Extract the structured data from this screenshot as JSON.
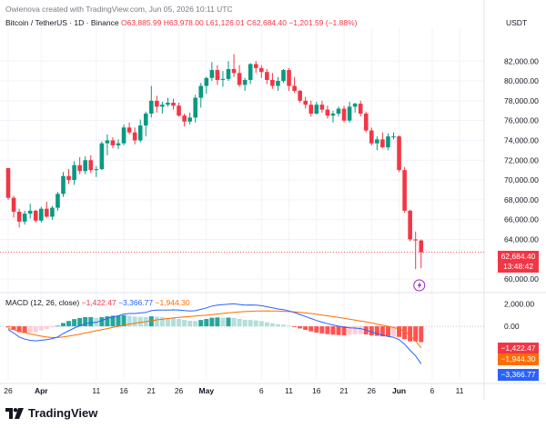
{
  "header": {
    "created_line": "Owienova created with TradingView.com, Jun 05, 2026 10:11 UTC",
    "symbol": "Bitcoin / TetherUS · 1D · Binance",
    "open": "O63,885.99",
    "high": "H63,978.00",
    "low": "L61,126.01",
    "close": "C62,684.40",
    "change": "−1,201.59 (−1.88%)",
    "currency": "USDT"
  },
  "last_price": {
    "value": "62,684.40",
    "countdown": "13:48:42"
  },
  "macd": {
    "label": "MACD (12, 26, close)",
    "histogram_value": "−1,422.47",
    "macd_value": "−3,366.77",
    "signal_value": "−1,944.30"
  },
  "colors": {
    "up": "#089981",
    "down": "#f23645",
    "macd_line": "#2962ff",
    "signal_line": "#ff6d00",
    "hist_up_strong": "#26a69a",
    "hist_up_weak": "#b2dfdb",
    "hist_down_strong": "#ff5252",
    "hist_down_weak": "#ffcdd2"
  },
  "brand": "TradingView",
  "brand_icon": "tradingview-logo-icon",
  "chart_data": {
    "type": "candlestick",
    "price_ticks": [
      "82,000.00",
      "80,000.00",
      "78,000.00",
      "76,000.00",
      "74,000.00",
      "72,000.00",
      "70,000.00",
      "68,000.00",
      "66,000.00",
      "64,000.00",
      "60,000.00"
    ],
    "price_tick_values": [
      82000,
      80000,
      78000,
      76000,
      74000,
      72000,
      70000,
      68000,
      66000,
      64000,
      60000
    ],
    "price_range": [
      59000,
      84500
    ],
    "macd_ticks": [
      "2,000.00",
      "0.00"
    ],
    "macd_tick_values": [
      2000,
      0
    ],
    "macd_range": [
      -4800,
      2700
    ],
    "x_labels": [
      "26",
      "Apr",
      "11",
      "16",
      "21",
      "26",
      "May",
      "6",
      "11",
      "16",
      "21",
      "26",
      "Jun",
      "6",
      "11"
    ],
    "x_label_days": [
      0,
      6,
      16,
      21,
      26,
      31,
      36,
      46,
      51,
      56,
      61,
      66,
      71,
      77,
      82
    ],
    "candles": [
      [
        71200,
        71200,
        68000,
        68200
      ],
      [
        68200,
        68400,
        66200,
        66800
      ],
      [
        66800,
        67100,
        65200,
        65800
      ],
      [
        65800,
        66900,
        65500,
        66600
      ],
      [
        66600,
        67600,
        66100,
        66900
      ],
      [
        66900,
        67000,
        65700,
        65900
      ],
      [
        65900,
        67300,
        65700,
        67100
      ],
      [
        67100,
        67800,
        66200,
        66300
      ],
      [
        66300,
        67400,
        66000,
        67200
      ],
      [
        67200,
        68800,
        66900,
        68600
      ],
      [
        68600,
        70800,
        68300,
        70400
      ],
      [
        70400,
        71100,
        69600,
        70000
      ],
      [
        70000,
        71900,
        69500,
        71500
      ],
      [
        71500,
        72300,
        70600,
        70900
      ],
      [
        70900,
        72400,
        70600,
        72000
      ],
      [
        72000,
        72500,
        70700,
        71000
      ],
      [
        71000,
        71400,
        70300,
        71100
      ],
      [
        71100,
        73900,
        71000,
        73700
      ],
      [
        73700,
        74600,
        72500,
        74000
      ],
      [
        74000,
        74300,
        73200,
        73500
      ],
      [
        73500,
        74100,
        73100,
        73700
      ],
      [
        73700,
        75600,
        73500,
        75300
      ],
      [
        75300,
        75800,
        74600,
        74800
      ],
      [
        74800,
        75300,
        73600,
        74000
      ],
      [
        74000,
        76100,
        73800,
        75500
      ],
      [
        75500,
        76900,
        74400,
        76700
      ],
      [
        76700,
        79500,
        76300,
        78000
      ],
      [
        78000,
        78500,
        76800,
        77400
      ],
      [
        77400,
        77900,
        76700,
        77600
      ],
      [
        77600,
        78300,
        77400,
        77800
      ],
      [
        77800,
        78200,
        77100,
        77500
      ],
      [
        77500,
        77800,
        76400,
        76500
      ],
      [
        76500,
        76700,
        75400,
        75900
      ],
      [
        75900,
        76800,
        75600,
        76300
      ],
      [
        76300,
        78600,
        75800,
        78300
      ],
      [
        78300,
        79800,
        77300,
        79500
      ],
      [
        79500,
        80400,
        78700,
        80300
      ],
      [
        80300,
        81900,
        80000,
        81100
      ],
      [
        81100,
        81600,
        79600,
        80100
      ],
      [
        80100,
        81000,
        79400,
        80200
      ],
      [
        80200,
        82000,
        80000,
        81200
      ],
      [
        81200,
        82700,
        80400,
        80800
      ],
      [
        80800,
        81600,
        79400,
        79600
      ],
      [
        79600,
        80300,
        79000,
        80100
      ],
      [
        80100,
        81800,
        79700,
        81700
      ],
      [
        81700,
        82000,
        80800,
        81300
      ],
      [
        81300,
        81600,
        80300,
        80900
      ],
      [
        80900,
        81200,
        79700,
        80100
      ],
      [
        80100,
        80800,
        79200,
        79500
      ],
      [
        79500,
        80400,
        79000,
        80000
      ],
      [
        80000,
        81200,
        79800,
        81100
      ],
      [
        81100,
        81300,
        79000,
        79500
      ],
      [
        79500,
        80400,
        78800,
        79000
      ],
      [
        79000,
        79100,
        77800,
        78000
      ],
      [
        78000,
        78400,
        77200,
        77600
      ],
      [
        77600,
        78000,
        76400,
        76700
      ],
      [
        76700,
        77900,
        76600,
        77600
      ],
      [
        77600,
        78000,
        76800,
        77100
      ],
      [
        77100,
        77500,
        76200,
        76500
      ],
      [
        76500,
        77000,
        75800,
        76700
      ],
      [
        76700,
        77400,
        76400,
        77200
      ],
      [
        77200,
        77500,
        75800,
        76000
      ],
      [
        76000,
        77900,
        75800,
        77400
      ],
      [
        77400,
        77800,
        76800,
        77700
      ],
      [
        77700,
        78000,
        76400,
        76700
      ],
      [
        76700,
        76900,
        74800,
        75000
      ],
      [
        75000,
        75300,
        73500,
        73700
      ],
      [
        73700,
        74400,
        73000,
        74100
      ],
      [
        74100,
        74800,
        73200,
        73300
      ],
      [
        73300,
        74700,
        73000,
        74400
      ],
      [
        74400,
        74800,
        74100,
        74400
      ],
      [
        74400,
        74500,
        70800,
        71000
      ],
      [
        71000,
        71300,
        66700,
        66900
      ],
      [
        66900,
        67000,
        63800,
        64000
      ],
      [
        64000,
        64800,
        61000,
        63900
      ],
      [
        63900,
        64000,
        61100,
        62700
      ]
    ],
    "macd_line": [
      -300,
      -600,
      -950,
      -1150,
      -1250,
      -1300,
      -1250,
      -1200,
      -1100,
      -950,
      -650,
      -400,
      -150,
      50,
      230,
      330,
      350,
      520,
      700,
      850,
      950,
      1100,
      1150,
      1150,
      1200,
      1250,
      1400,
      1450,
      1450,
      1450,
      1480,
      1460,
      1420,
      1380,
      1400,
      1530,
      1660,
      1820,
      1900,
      1940,
      1990,
      2020,
      1960,
      1900,
      1920,
      1900,
      1850,
      1760,
      1660,
      1560,
      1500,
      1380,
      1240,
      1060,
      880,
      700,
      520,
      380,
      240,
      120,
      20,
      -80,
      -130,
      -150,
      -200,
      -330,
      -510,
      -650,
      -800,
      -900,
      -980,
      -1200,
      -1600,
      -2150,
      -2650,
      -3360
    ],
    "signal_line": [
      -200,
      -300,
      -420,
      -550,
      -680,
      -780,
      -880,
      -960,
      -1000,
      -1000,
      -950,
      -880,
      -800,
      -700,
      -600,
      -500,
      -400,
      -300,
      -200,
      -100,
      0,
      100,
      200,
      280,
      350,
      420,
      500,
      580,
      640,
      700,
      750,
      800,
      840,
      880,
      920,
      960,
      1000,
      1050,
      1100,
      1160,
      1210,
      1260,
      1290,
      1320,
      1350,
      1370,
      1380,
      1390,
      1380,
      1370,
      1350,
      1320,
      1290,
      1250,
      1200,
      1150,
      1080,
      1010,
      940,
      870,
      800,
      720,
      640,
      560,
      480,
      400,
      300,
      200,
      100,
      0,
      -100,
      -250,
      -450,
      -800,
      -1300,
      -1944
    ]
  }
}
